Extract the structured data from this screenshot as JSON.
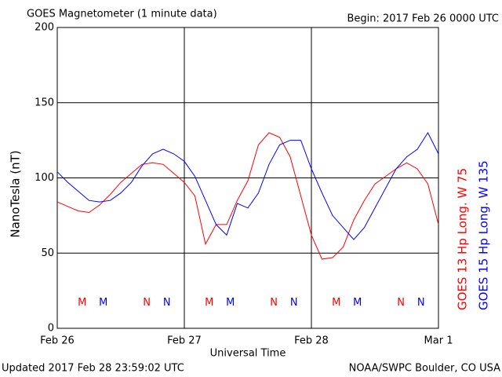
{
  "chart_data": {
    "type": "line",
    "title": "GOES Magnetometer (1 minute data)",
    "begin_label": "Begin:  2017 Feb 26 0000 UTC",
    "ylabel": "NanoTesla (nT)",
    "xlabel": "Universal Time",
    "updated": "Updated 2017 Feb 28 23:59:02 UTC",
    "source": "NOAA/SWPC Boulder, CO USA",
    "xlim": [
      0,
      72
    ],
    "xticks": [
      {
        "value": 0,
        "label": "Feb 26"
      },
      {
        "value": 24,
        "label": "Feb 27"
      },
      {
        "value": 48,
        "label": "Feb 28"
      },
      {
        "value": 72,
        "label": "Mar 1"
      }
    ],
    "ylim": [
      0,
      200
    ],
    "yticks": [
      0,
      50,
      100,
      150,
      200
    ],
    "grid": true,
    "x": [
      0,
      2,
      4,
      6,
      8,
      10,
      12,
      14,
      16,
      18,
      20,
      22,
      24,
      26,
      28,
      30,
      32,
      34,
      36,
      38,
      40,
      42,
      44,
      46,
      48,
      50,
      52,
      54,
      56,
      58,
      60,
      62,
      64,
      66,
      68,
      70,
      72
    ],
    "series": [
      {
        "name": "GOES 13 Hp  Long. W 75",
        "color": "#ff0000",
        "values": [
          84,
          81,
          78,
          77,
          82,
          89,
          97,
          103,
          109,
          110,
          109,
          103,
          97,
          88,
          56,
          69,
          69,
          85,
          98,
          122,
          130,
          127,
          114,
          88,
          62,
          46,
          47,
          54,
          72,
          85,
          96,
          101,
          106,
          110,
          106,
          96,
          69
        ]
      },
      {
        "name": "GOES 15 Hp  Long. W 135",
        "color": "#0000ff",
        "values": [
          104,
          97,
          91,
          85,
          84,
          85,
          90,
          97,
          108,
          116,
          119,
          116,
          111,
          101,
          85,
          69,
          62,
          83,
          80,
          90,
          109,
          122,
          125,
          125,
          106,
          90,
          75,
          67,
          59,
          67,
          80,
          93,
          106,
          114,
          119,
          130,
          116
        ]
      }
    ],
    "annotations": [
      {
        "text": "M",
        "x": 4.7,
        "y": 17,
        "color": "#ff0000"
      },
      {
        "text": "M",
        "x": 8.7,
        "y": 17,
        "color": "#0000ff"
      },
      {
        "text": "N",
        "x": 16.9,
        "y": 17,
        "color": "#ff0000"
      },
      {
        "text": "N",
        "x": 20.7,
        "y": 17,
        "color": "#0000ff"
      },
      {
        "text": "M",
        "x": 28.7,
        "y": 17,
        "color": "#ff0000"
      },
      {
        "text": "M",
        "x": 32.7,
        "y": 17,
        "color": "#0000ff"
      },
      {
        "text": "N",
        "x": 40.9,
        "y": 17,
        "color": "#ff0000"
      },
      {
        "text": "N",
        "x": 44.7,
        "y": 17,
        "color": "#0000ff"
      },
      {
        "text": "M",
        "x": 52.7,
        "y": 17,
        "color": "#ff0000"
      },
      {
        "text": "M",
        "x": 56.7,
        "y": 17,
        "color": "#0000ff"
      },
      {
        "text": "N",
        "x": 64.9,
        "y": 17,
        "color": "#ff0000"
      },
      {
        "text": "N",
        "x": 68.7,
        "y": 17,
        "color": "#0000ff"
      }
    ]
  }
}
